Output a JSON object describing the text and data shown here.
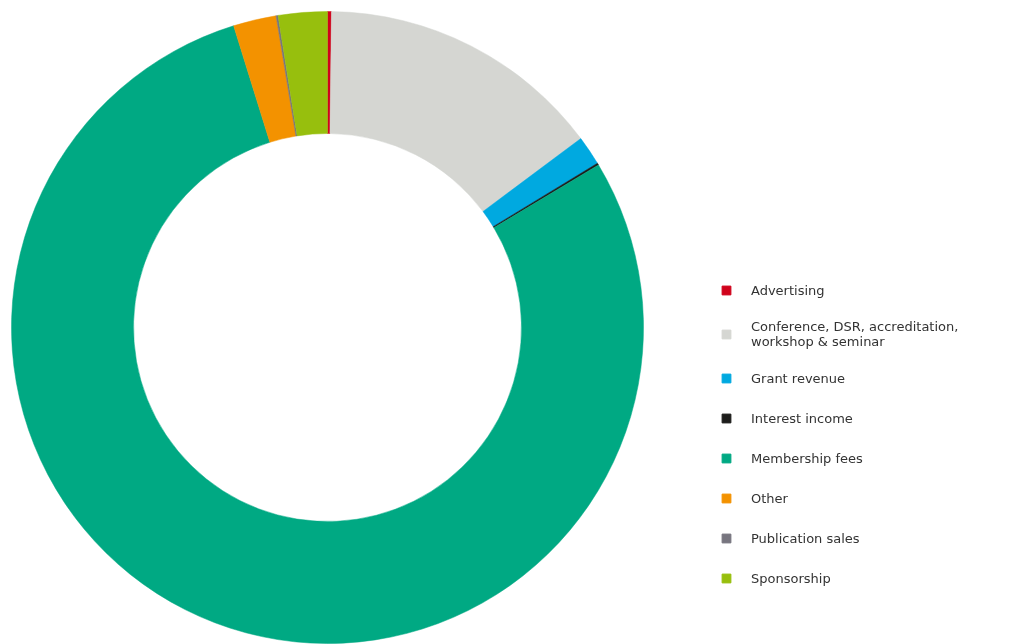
{
  "chart_data": {
    "type": "donut",
    "categories": [
      "Advertising",
      "Conference, DSR, accreditation, workshop & seminar",
      "Grant revenue",
      "Interest income",
      "Membership fees",
      "Other",
      "Publication sales",
      "Sponsorship"
    ],
    "values": [
      0.2,
      14.6,
      1.5,
      0.1,
      78.8,
      2.2,
      0.1,
      2.5
    ],
    "colors": [
      "#d0021b",
      "#d5d6d2",
      "#00a9e0",
      "#1d1d1b",
      "#00a983",
      "#f39200",
      "#77757f",
      "#97bf0d"
    ],
    "legend": "right"
  }
}
